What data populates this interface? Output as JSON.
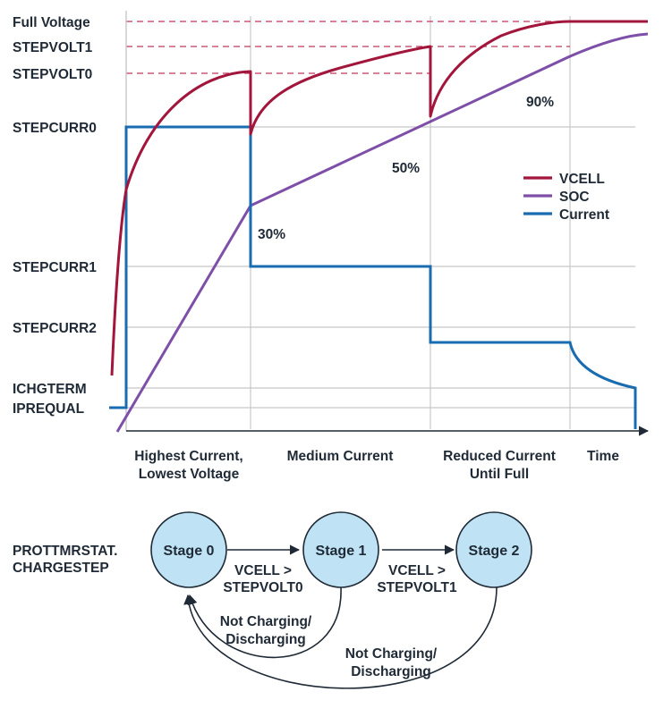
{
  "figure": {
    "y_labels": {
      "full_voltage": "Full Voltage",
      "stepvolt1": "STEPVOLT1",
      "stepvolt0": "STEPVOLT0",
      "stepcurr0": "STEPCURR0",
      "stepcurr1": "STEPCURR1",
      "stepcurr2": "STEPCURR2",
      "ichgterm": "ICHGTERM",
      "iprequal": "IPREQUAL"
    },
    "x_labels": {
      "phase1_line1": "Highest Current,",
      "phase1_line2": "Lowest Voltage",
      "phase2": "Medium Current",
      "phase3_line1": "Reduced Current",
      "phase3_line2": "Until Full",
      "time": "Time"
    },
    "soc_annotations": {
      "p30": "30%",
      "p50": "50%",
      "p90": "90%"
    },
    "legend": {
      "vcell": "VCELL",
      "soc": "SOC",
      "current": "Current"
    },
    "colors": {
      "vcell": "#a3163c",
      "soc": "#7e4fa8",
      "current": "#1a6cb0",
      "threshold_dash": "#c0385c",
      "grid": "#c8c8c8",
      "stage_fill": "#bfe3f5"
    }
  },
  "state_diagram": {
    "register_line1": "PROTTMRSTAT.",
    "register_line2": "CHARGESTEP",
    "stages": {
      "s0": "Stage 0",
      "s1": "Stage 1",
      "s2": "Stage 2"
    },
    "transitions": {
      "t01_line1": "VCELL >",
      "t01_line2": "STEPVOLT0",
      "t12_line1": "VCELL >",
      "t12_line2": "STEPVOLT1",
      "back1_line1": "Not Charging/",
      "back1_line2": "Discharging",
      "back2_line1": "Not Charging/",
      "back2_line2": "Discharging"
    }
  }
}
